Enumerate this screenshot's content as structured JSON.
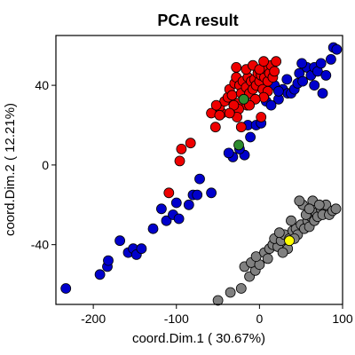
{
  "chart_data": {
    "type": "scatter",
    "title": "PCA result",
    "xlabel": "coord.Dim.1 ( 30.67%)",
    "ylabel": "coord.Dim.2 ( 12.21%)",
    "xlim": [
      -245,
      100
    ],
    "ylim": [
      -70,
      65
    ],
    "xticks": [
      -200,
      -100,
      0,
      100
    ],
    "yticks": [
      -40,
      0,
      40
    ],
    "grid": false,
    "legend": "none",
    "series": [
      {
        "color": "#0000cc",
        "points": [
          [
            -233,
            -62
          ],
          [
            -192,
            -55
          ],
          [
            -183,
            -51
          ],
          [
            -182,
            -48
          ],
          [
            -168,
            -38
          ],
          [
            -158,
            -44
          ],
          [
            -152,
            -42
          ],
          [
            -148,
            -45
          ],
          [
            -142,
            -42
          ],
          [
            -128,
            -32
          ],
          [
            -118,
            -22
          ],
          [
            -112,
            -28
          ],
          [
            -104,
            -25
          ],
          [
            -100,
            -19
          ],
          [
            -97,
            -27
          ],
          [
            -85,
            -20
          ],
          [
            -80,
            -15
          ],
          [
            -75,
            -15
          ],
          [
            -72,
            -7
          ],
          [
            -58,
            -14
          ],
          [
            -32,
            4
          ],
          [
            -37,
            6
          ],
          [
            -18,
            5
          ],
          [
            -11,
            14
          ],
          [
            -24,
            8
          ],
          [
            -14,
            20
          ],
          [
            -4,
            20
          ],
          [
            2,
            21
          ],
          [
            8,
            32
          ],
          [
            18,
            40
          ],
          [
            23,
            33
          ],
          [
            28,
            38
          ],
          [
            34,
            36
          ],
          [
            38,
            36
          ],
          [
            42,
            38
          ],
          [
            46,
            41
          ],
          [
            48,
            46
          ],
          [
            52,
            42
          ],
          [
            57,
            49
          ],
          [
            62,
            45
          ],
          [
            66,
            49
          ],
          [
            70,
            47
          ],
          [
            74,
            51
          ],
          [
            80,
            45
          ],
          [
            86,
            53
          ],
          [
            89,
            59
          ],
          [
            93,
            58
          ],
          [
            33,
            43
          ],
          [
            23,
            37
          ],
          [
            51,
            51
          ],
          [
            14,
            30
          ],
          [
            76,
            36
          ],
          [
            66,
            40
          ]
        ]
      },
      {
        "color": "#ee0000",
        "points": [
          [
            -96,
            2
          ],
          [
            -94,
            8
          ],
          [
            -83,
            11
          ],
          [
            -58,
            26
          ],
          [
            -45,
            26
          ],
          [
            -48,
            29
          ],
          [
            -42,
            32
          ],
          [
            -38,
            34
          ],
          [
            -36,
            38
          ],
          [
            -33,
            35
          ],
          [
            -30,
            41
          ],
          [
            -28,
            44
          ],
          [
            -26,
            31
          ],
          [
            -24,
            40
          ],
          [
            -22,
            36
          ],
          [
            -20,
            42
          ],
          [
            -18,
            33
          ],
          [
            -16,
            39
          ],
          [
            -14,
            44
          ],
          [
            -12,
            36
          ],
          [
            -10,
            42
          ],
          [
            -8,
            38
          ],
          [
            -6,
            43
          ],
          [
            -4,
            40
          ],
          [
            -2,
            46
          ],
          [
            0,
            42
          ],
          [
            2,
            45
          ],
          [
            4,
            38
          ],
          [
            6,
            44
          ],
          [
            8,
            48
          ],
          [
            10,
            42
          ],
          [
            12,
            46
          ],
          [
            14,
            50
          ],
          [
            16,
            44
          ],
          [
            18,
            47
          ],
          [
            20,
            52
          ],
          [
            10,
            37
          ],
          [
            5,
            34
          ],
          [
            -5,
            33
          ],
          [
            -15,
            30
          ],
          [
            -25,
            28
          ],
          [
            -31,
            30
          ],
          [
            -48,
            25
          ],
          [
            -52,
            30
          ],
          [
            -27,
            24
          ],
          [
            -36,
            26
          ],
          [
            -22,
            19
          ],
          [
            -53,
            19
          ],
          [
            -109,
            -14
          ],
          [
            2,
            24
          ],
          [
            -12,
            30
          ],
          [
            -16,
            48
          ],
          [
            -8,
            50
          ],
          [
            0,
            48
          ],
          [
            5,
            52
          ],
          [
            -28,
            49
          ]
        ]
      },
      {
        "color": "#808080",
        "points": [
          [
            -50,
            -68
          ],
          [
            -35,
            -64
          ],
          [
            -22,
            -62
          ],
          [
            -12,
            -56
          ],
          [
            -5,
            -53
          ],
          [
            -18,
            -51
          ],
          [
            -10,
            -49
          ],
          [
            0,
            -50
          ],
          [
            -4,
            -46
          ],
          [
            6,
            -44
          ],
          [
            12,
            -42
          ],
          [
            16,
            -40
          ],
          [
            22,
            -41
          ],
          [
            18,
            -37
          ],
          [
            26,
            -38
          ],
          [
            30,
            -35
          ],
          [
            36,
            -37
          ],
          [
            40,
            -33
          ],
          [
            44,
            -32
          ],
          [
            46,
            -35
          ],
          [
            50,
            -30
          ],
          [
            54,
            -32
          ],
          [
            58,
            -28
          ],
          [
            60,
            -31
          ],
          [
            62,
            -26
          ],
          [
            66,
            -28
          ],
          [
            68,
            -24
          ],
          [
            70,
            -26
          ],
          [
            74,
            -22
          ],
          [
            76,
            -25
          ],
          [
            80,
            -20
          ],
          [
            84,
            -25
          ],
          [
            88,
            -23
          ],
          [
            92,
            -22
          ],
          [
            38,
            -28
          ],
          [
            42,
            -37
          ],
          [
            56,
            -25
          ],
          [
            64,
            -18
          ],
          [
            52,
            -20
          ],
          [
            48,
            -18
          ],
          [
            60,
            -22
          ],
          [
            72,
            -20
          ],
          [
            34,
            -42
          ],
          [
            28,
            -44
          ],
          [
            24,
            -34
          ],
          [
            10,
            -47
          ]
        ]
      },
      {
        "color": "#2e8b2e",
        "points": [
          [
            -19,
            33
          ],
          [
            -25,
            10
          ]
        ]
      },
      {
        "color": "#ffff00",
        "points": [
          [
            36,
            -38
          ]
        ]
      }
    ]
  }
}
